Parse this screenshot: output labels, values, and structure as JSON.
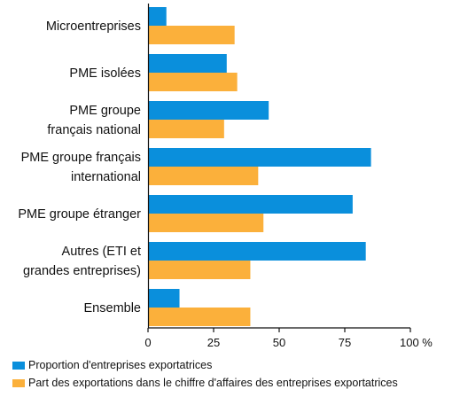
{
  "chart_data": {
    "type": "bar",
    "orientation": "horizontal",
    "categories": [
      [
        "Microentreprises"
      ],
      [
        "PME isolées"
      ],
      [
        "PME groupe",
        "français national"
      ],
      [
        "PME groupe français",
        "international"
      ],
      [
        "PME groupe étranger"
      ],
      [
        "Autres (ETI et",
        "grandes entreprises)"
      ],
      [
        "Ensemble"
      ]
    ],
    "series": [
      {
        "name": "Proportion d'entreprises exportatrices",
        "color": "#0a8fdc",
        "values": [
          7,
          30,
          46,
          85,
          78,
          83,
          12
        ]
      },
      {
        "name": "Part des exportations dans le chiffre d'affaires des entreprises exportatrices",
        "color": "#fbb03b",
        "values": [
          33,
          34,
          29,
          42,
          44,
          39,
          39
        ]
      }
    ],
    "xticks": [
      "0",
      "25",
      "50",
      "75",
      "100 %"
    ],
    "xlim": [
      0,
      100
    ],
    "legend_position": "bottom-left",
    "grid": false
  }
}
